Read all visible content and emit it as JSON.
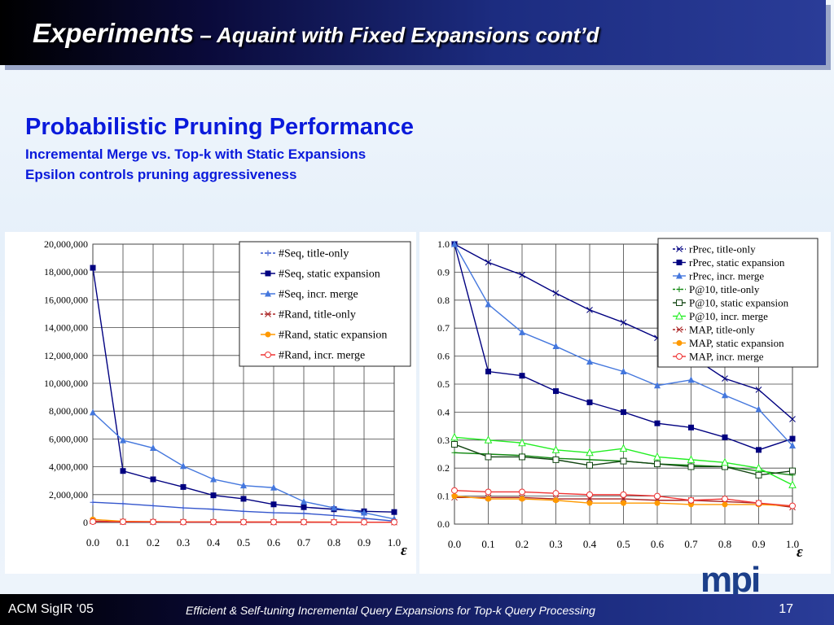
{
  "header": {
    "title_main": "Experiments",
    "title_rest": " – Aquaint with Fixed Expansions cont’d"
  },
  "section": {
    "title": "Probabilistic Pruning Performance",
    "sub1": "Incremental Merge vs. Top-k with Static Expansions",
    "sub2": "Epsilon controls pruning aggressiveness"
  },
  "footer": {
    "left": "ACM SigIR ‘05",
    "center": "Efficient & Self-tuning Incremental Query Expansions for Top-k Query Processing",
    "page": "17"
  },
  "logo": {
    "text": "mpi"
  },
  "chart_data": [
    {
      "type": "line",
      "title": "",
      "xlabel": "ε",
      "ylabel": "",
      "x": [
        0.0,
        0.1,
        0.2,
        0.3,
        0.4,
        0.5,
        0.6,
        0.7,
        0.8,
        0.9,
        1.0
      ],
      "xticks": [
        "0.0",
        "0.1",
        "0.2",
        "0.3",
        "0.4",
        "0.5",
        "0.6",
        "0.7",
        "0.8",
        "0.9",
        "1.0"
      ],
      "ylim": [
        0,
        20000000
      ],
      "yticks": [
        0,
        2000000,
        4000000,
        6000000,
        8000000,
        10000000,
        12000000,
        14000000,
        16000000,
        18000000,
        20000000
      ],
      "ytick_labels": [
        "0",
        "2,000,000",
        "4,000,000",
        "6,000,000",
        "8,000,000",
        "10,000,000",
        "12,000,000",
        "14,000,000",
        "16,000,000",
        "18,000,000",
        "20,000,000"
      ],
      "grid": true,
      "legend_position": "top-right",
      "series": [
        {
          "name": "#Seq, title-only",
          "color": "#3355cc",
          "marker": "plus",
          "dashed": true,
          "values": [
            1450000,
            1350000,
            1200000,
            1050000,
            950000,
            800000,
            700000,
            650000,
            500000,
            300000,
            100000
          ]
        },
        {
          "name": "#Seq, static expansion",
          "color": "#000080",
          "marker": "square",
          "values": [
            18300000,
            3700000,
            3100000,
            2550000,
            1950000,
            1700000,
            1300000,
            1100000,
            950000,
            800000,
            750000
          ]
        },
        {
          "name": "#Seq, incr. merge",
          "color": "#4477dd",
          "marker": "triangle",
          "values": [
            7900000,
            5900000,
            5350000,
            4050000,
            3100000,
            2650000,
            2500000,
            1500000,
            1050000,
            700000,
            250000
          ]
        },
        {
          "name": "#Rand, title-only",
          "color": "#aa2222",
          "marker": "x",
          "dashed": true,
          "values": [
            100000,
            50000,
            40000,
            30000,
            30000,
            20000,
            20000,
            20000,
            20000,
            10000,
            10000
          ]
        },
        {
          "name": "#Rand, static expansion",
          "color": "#ff9900",
          "marker": "circle",
          "values": [
            220000,
            80000,
            60000,
            50000,
            40000,
            40000,
            30000,
            30000,
            30000,
            20000,
            20000
          ]
        },
        {
          "name": "#Rand, incr. merge",
          "color": "#ee3333",
          "marker": "ocircle",
          "values": [
            60000,
            50000,
            40000,
            30000,
            30000,
            30000,
            30000,
            30000,
            20000,
            20000,
            20000
          ]
        }
      ]
    },
    {
      "type": "line",
      "title": "",
      "xlabel": "ε",
      "ylabel": "",
      "x": [
        0.0,
        0.1,
        0.2,
        0.3,
        0.4,
        0.5,
        0.6,
        0.7,
        0.8,
        0.9,
        1.0
      ],
      "xticks": [
        "0.0",
        "0.1",
        "0.2",
        "0.3",
        "0.4",
        "0.5",
        "0.6",
        "0.7",
        "0.8",
        "0.9",
        "1.0"
      ],
      "ylim": [
        0,
        1.0
      ],
      "yticks": [
        0,
        0.1,
        0.2,
        0.3,
        0.4,
        0.5,
        0.6,
        0.7,
        0.8,
        0.9,
        1.0
      ],
      "ytick_labels": [
        "0.0",
        "0.1",
        "0.2",
        "0.3",
        "0.4",
        "0.5",
        "0.6",
        "0.7",
        "0.8",
        "0.9",
        "1.0"
      ],
      "grid": true,
      "legend_position": "top-right",
      "series": [
        {
          "name": "rPrec, title-only",
          "color": "#000080",
          "marker": "x",
          "dashed": true,
          "values": [
            1.0,
            0.935,
            0.89,
            0.825,
            0.765,
            0.72,
            0.665,
            0.6,
            0.52,
            0.48,
            0.375
          ]
        },
        {
          "name": "rPrec, static expansion",
          "color": "#000080",
          "marker": "square",
          "values": [
            1.0,
            0.545,
            0.53,
            0.475,
            0.435,
            0.4,
            0.36,
            0.345,
            0.31,
            0.265,
            0.305
          ]
        },
        {
          "name": "rPrec, incr. merge",
          "color": "#4477dd",
          "marker": "triangle",
          "values": [
            1.0,
            0.785,
            0.685,
            0.635,
            0.58,
            0.545,
            0.495,
            0.515,
            0.46,
            0.41,
            0.28
          ]
        },
        {
          "name": "P@10, title-only",
          "color": "#118811",
          "marker": "plus",
          "dashed": true,
          "values": [
            0.255,
            0.25,
            0.245,
            0.235,
            0.23,
            0.225,
            0.215,
            0.21,
            0.205,
            0.19,
            0.175
          ]
        },
        {
          "name": "P@10, static expansion",
          "color": "#114411",
          "marker": "osquare",
          "values": [
            0.285,
            0.24,
            0.24,
            0.23,
            0.21,
            0.225,
            0.215,
            0.205,
            0.205,
            0.175,
            0.19
          ]
        },
        {
          "name": "P@10, incr. merge",
          "color": "#22ee22",
          "marker": "otriangle",
          "values": [
            0.31,
            0.3,
            0.29,
            0.265,
            0.255,
            0.27,
            0.24,
            0.23,
            0.22,
            0.2,
            0.14
          ]
        },
        {
          "name": "MAP,  title-only",
          "color": "#aa2222",
          "marker": "x",
          "dashed": true,
          "values": [
            0.095,
            0.095,
            0.095,
            0.09,
            0.09,
            0.09,
            0.085,
            0.085,
            0.08,
            0.075,
            0.06
          ]
        },
        {
          "name": "MAP,  static expansion",
          "color": "#ff9900",
          "marker": "circle",
          "values": [
            0.1,
            0.09,
            0.09,
            0.085,
            0.075,
            0.075,
            0.075,
            0.07,
            0.07,
            0.07,
            0.065
          ]
        },
        {
          "name": "MAP,  incr. merge",
          "color": "#ee3333",
          "marker": "ocircle",
          "values": [
            0.12,
            0.115,
            0.115,
            0.11,
            0.105,
            0.105,
            0.1,
            0.085,
            0.09,
            0.075,
            0.065
          ]
        }
      ]
    }
  ]
}
